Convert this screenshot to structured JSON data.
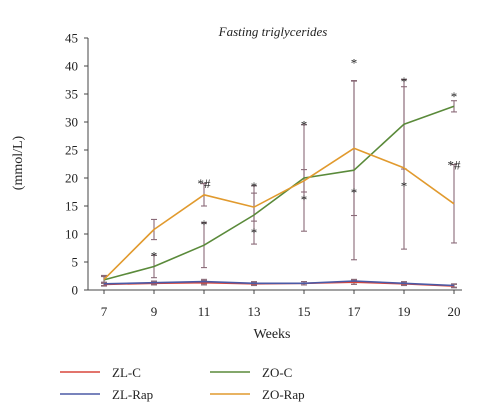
{
  "chart_data": {
    "type": "line",
    "title": "Fasting triglycerides",
    "xlabel": "Weeks",
    "ylabel": "(mmol/L)",
    "x": [
      7,
      9,
      11,
      13,
      15,
      17,
      19,
      20
    ],
    "x_tick_labels": [
      "7",
      "9",
      "11",
      "13",
      "15",
      "17",
      "19",
      "20"
    ],
    "ylim": [
      0,
      45
    ],
    "y_ticks": [
      0,
      5,
      10,
      15,
      20,
      25,
      30,
      35,
      40,
      45
    ],
    "series": [
      {
        "name": "ZL-C",
        "color": "#d9463b",
        "values": [
          1.0,
          1.2,
          1.3,
          1.1,
          1.2,
          1.4,
          1.1,
          0.7
        ],
        "error": [
          0.3,
          0.3,
          0.4,
          0.3,
          0.3,
          0.4,
          0.3,
          0.3
        ]
      },
      {
        "name": "ZL-Rap",
        "color": "#4b5aa6",
        "values": [
          1.1,
          1.3,
          1.5,
          1.2,
          1.2,
          1.6,
          1.2,
          0.8
        ],
        "error": [
          0.3,
          0.3,
          0.4,
          0.3,
          0.3,
          0.3,
          0.3,
          0.3
        ]
      },
      {
        "name": "ZO-C",
        "color": "#5a8a3a",
        "values": [
          1.8,
          4.2,
          8.0,
          13.4,
          20.0,
          21.4,
          29.6,
          32.8
        ],
        "error": [
          0.6,
          2.0,
          4.0,
          5.2,
          9.5,
          16.0,
          8.0,
          1.0
        ]
      },
      {
        "name": "ZO-Rap",
        "color": "#e19a2e",
        "values": [
          1.9,
          10.8,
          17.0,
          14.8,
          19.5,
          25.3,
          21.8,
          15.4
        ],
        "error": [
          0.7,
          1.8,
          2.0,
          2.5,
          2.0,
          12.0,
          14.5,
          7.0
        ]
      }
    ],
    "annotations": [
      {
        "x": 9,
        "y": 6.9,
        "text": "*"
      },
      {
        "x": 11,
        "y": 12.5,
        "text": "*"
      },
      {
        "x": 11,
        "y": 19.8,
        "text": "*#"
      },
      {
        "x": 13,
        "y": 19.3,
        "text": "*"
      },
      {
        "x": 13,
        "y": 11.1,
        "text": "*"
      },
      {
        "x": 15,
        "y": 30.3,
        "text": "*"
      },
      {
        "x": 15,
        "y": 17.0,
        "text": "*"
      },
      {
        "x": 17,
        "y": 41.3,
        "text": "*"
      },
      {
        "x": 17,
        "y": 18.2,
        "text": "*"
      },
      {
        "x": 19,
        "y": 38.0,
        "text": "*"
      },
      {
        "x": 19,
        "y": 19.4,
        "text": "*"
      },
      {
        "x": 20,
        "y": 35.4,
        "text": "*"
      },
      {
        "x": 20,
        "y": 23.1,
        "text": "*#"
      }
    ],
    "legend": {
      "placement": "bottom",
      "columns": 2,
      "entries": [
        "ZL-C",
        "ZO-C",
        "ZL-Rap",
        "ZO-Rap"
      ]
    },
    "grid": false
  }
}
